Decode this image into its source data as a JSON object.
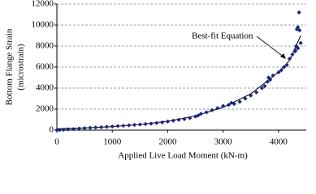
{
  "chart_data": {
    "type": "scatter",
    "xlabel": "Applied Live Load Moment (kN-m)",
    "ylabel": [
      "Bottom Flange Strain",
      "(microstrain)"
    ],
    "annotation": "Best-fit Equation",
    "xlim": [
      0,
      4500
    ],
    "xticks": [
      0,
      1000,
      2000,
      3000,
      4000
    ],
    "ylim": [
      0,
      12000
    ],
    "yticks": [
      0,
      2000,
      4000,
      6000,
      8000,
      10000,
      12000
    ],
    "grid": true,
    "points": {
      "color": "#1a237e",
      "x": [
        0,
        50,
        120,
        200,
        300,
        400,
        500,
        600,
        700,
        800,
        900,
        1000,
        1100,
        1200,
        1300,
        1400,
        1500,
        1600,
        1700,
        1800,
        1900,
        2000,
        2100,
        2200,
        2300,
        2400,
        2500,
        2550,
        2600,
        2700,
        2800,
        2900,
        3000,
        3100,
        3150,
        3200,
        3300,
        3400,
        3500,
        3600,
        3700,
        3750,
        3800,
        3820,
        3850,
        3900,
        4000,
        4050,
        4100,
        4150,
        4200,
        4250,
        4300,
        4320,
        4330,
        4350,
        4370,
        4380,
        4400,
        4350,
        4300
      ],
      "values": [
        0,
        20,
        40,
        80,
        100,
        150,
        180,
        220,
        250,
        280,
        320,
        350,
        390,
        420,
        460,
        500,
        540,
        580,
        620,
        680,
        740,
        820,
        900,
        980,
        1050,
        1150,
        1300,
        1400,
        1550,
        1700,
        1900,
        2100,
        2300,
        2400,
        2600,
        2500,
        2700,
        3000,
        3300,
        3600,
        4000,
        4200,
        4600,
        5000,
        4800,
        5200,
        5500,
        5700,
        6000,
        6200,
        6800,
        7200,
        7500,
        8000,
        9600,
        9800,
        11200,
        9500,
        8300,
        7800,
        7600
      ]
    },
    "fit": {
      "color": "#000000",
      "x": [
        0,
        500,
        1000,
        1500,
        2000,
        2500,
        3000,
        3500,
        4000,
        4200,
        4400
      ],
      "values": [
        131,
        210,
        334,
        536,
        850,
        1360,
        2170,
        3460,
        5520,
        6650,
        9000
      ]
    }
  }
}
